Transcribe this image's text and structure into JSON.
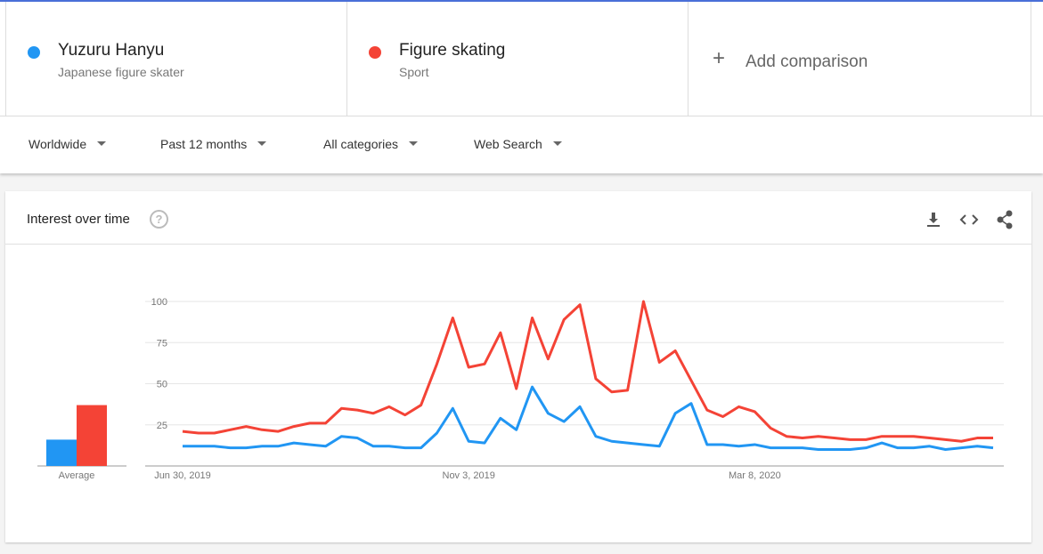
{
  "term_subtitles": [
    "Japanese figure skater",
    "Sport"
  ],
  "add_comparison": "Add comparison",
  "filters": [
    "Worldwide",
    "Past 12 months",
    "All categories",
    "Web Search"
  ],
  "card_title": "Interest over time",
  "chart_data": [
    {
      "type": "bar",
      "categories": [
        "Average"
      ],
      "ylim": [
        0,
        100
      ],
      "series": [
        {
          "color": "#2196f3",
          "values": [
            16
          ]
        },
        {
          "color": "#f44336",
          "values": [
            37
          ]
        }
      ]
    },
    {
      "type": "line",
      "ylim": [
        0,
        100
      ],
      "yticks": [
        25,
        50,
        75,
        100
      ],
      "grid": true,
      "categories": [
        "Jun 30, 2019",
        null,
        null,
        null,
        null,
        null,
        null,
        null,
        null,
        null,
        null,
        null,
        null,
        null,
        null,
        null,
        null,
        null,
        "Nov 3, 2019",
        null,
        null,
        null,
        null,
        null,
        null,
        null,
        null,
        null,
        null,
        null,
        null,
        null,
        null,
        null,
        null,
        null,
        "Mar 8, 2020",
        null,
        null,
        null,
        null,
        null,
        null,
        null,
        null,
        null,
        null,
        null,
        null,
        null,
        null,
        null
      ],
      "series": [
        {
          "name": "Yuzuru Hanyu",
          "color": "#2196f3",
          "values": [
            12,
            12,
            12,
            11,
            11,
            12,
            12,
            14,
            13,
            12,
            18,
            17,
            12,
            12,
            11,
            11,
            20,
            35,
            15,
            14,
            29,
            22,
            48,
            32,
            27,
            36,
            18,
            15,
            14,
            13,
            12,
            32,
            38,
            13,
            13,
            12,
            13,
            11,
            11,
            11,
            10,
            10,
            10,
            11,
            14,
            11,
            11,
            12,
            10,
            11,
            12,
            11
          ]
        },
        {
          "name": "Figure skating",
          "color": "#f44336",
          "values": [
            21,
            20,
            20,
            22,
            24,
            22,
            21,
            24,
            26,
            26,
            35,
            34,
            32,
            36,
            31,
            37,
            62,
            90,
            60,
            62,
            81,
            47,
            90,
            65,
            89,
            98,
            53,
            45,
            46,
            100,
            63,
            70,
            52,
            34,
            30,
            36,
            33,
            23,
            18,
            17,
            18,
            17,
            16,
            16,
            18,
            18,
            18,
            17,
            16,
            15,
            17,
            17
          ]
        }
      ]
    }
  ]
}
